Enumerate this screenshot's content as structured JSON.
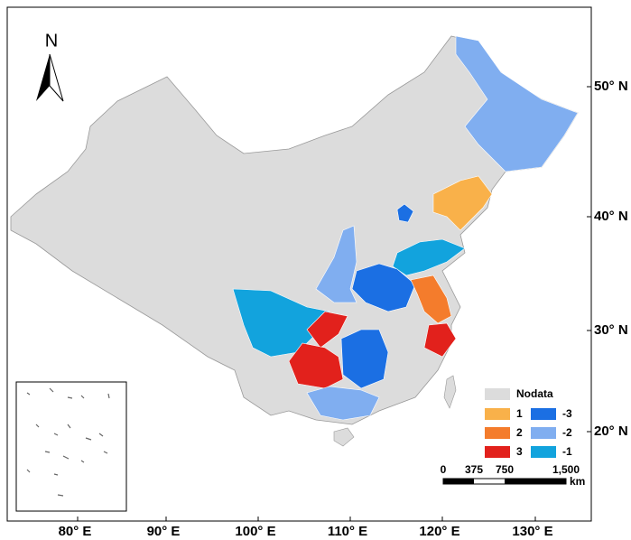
{
  "north": "N",
  "longitude_labels": [
    "80° E",
    "90° E",
    "100° E",
    "110° E",
    "120° E",
    "130° E"
  ],
  "latitude_labels": [
    "50° N",
    "40° N",
    "30° N",
    "20° N"
  ],
  "legend": {
    "nodata": {
      "label": "Nodata",
      "color": "#dcdcdc"
    },
    "classes": [
      {
        "label": "1",
        "color": "#f9b14a"
      },
      {
        "label": "2",
        "color": "#f47c2c"
      },
      {
        "label": "3",
        "color": "#e2211c"
      },
      {
        "label": "-3",
        "color": "#1b6fe3"
      },
      {
        "label": "-2",
        "color": "#80aef0"
      },
      {
        "label": "-1",
        "color": "#12a3dd"
      }
    ]
  },
  "scale_bar": {
    "labels": [
      "0",
      "375",
      "750",
      "1,500"
    ],
    "unit": "km"
  }
}
